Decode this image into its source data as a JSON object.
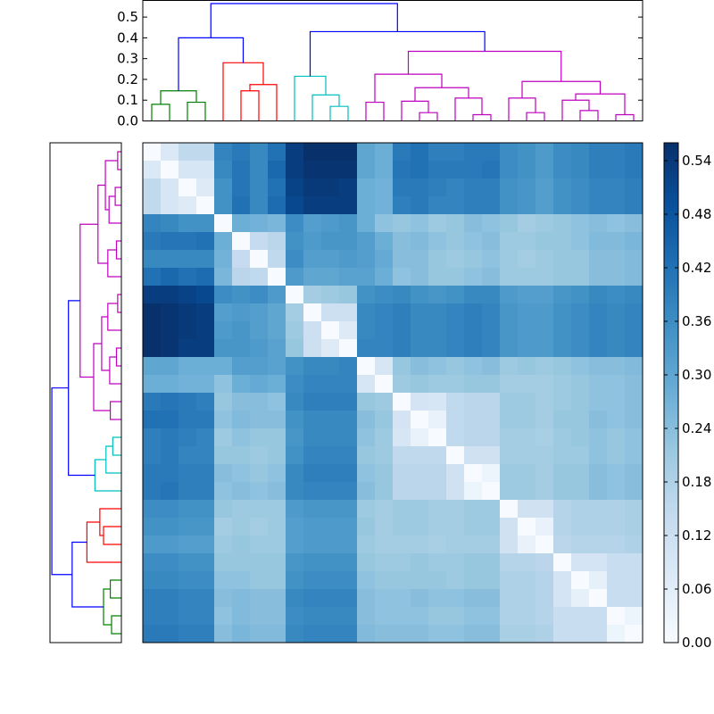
{
  "chart_data": [
    {
      "type": "dendrogram",
      "orientation": "top",
      "ylim": [
        0,
        0.58
      ],
      "yticks": [
        "0.0",
        "0.1",
        "0.2",
        "0.3",
        "0.4",
        "0.5"
      ],
      "yticks_values": [
        0,
        0.1,
        0.2,
        0.3,
        0.4,
        0.5
      ],
      "leaf_count": 28,
      "cluster_colors": {
        "blue": "#0000ff",
        "green": "#008000",
        "red": "#ff0000",
        "cyan": "#00bfbf",
        "magenta": "#bf00bf"
      },
      "links": [
        {
          "a": 0.5,
          "b": 1.5,
          "ha": 0.0,
          "hb": 0.0,
          "h": 0.08,
          "color": "green"
        },
        {
          "a": 2.5,
          "b": 3.5,
          "ha": 0.0,
          "hb": 0.0,
          "h": 0.09,
          "color": "green"
        },
        {
          "a": 1.0,
          "b": 3.0,
          "ha": 0.08,
          "hb": 0.09,
          "h": 0.145,
          "color": "green"
        },
        {
          "a": 5.5,
          "b": 6.5,
          "ha": 0.0,
          "hb": 0.0,
          "h": 0.145,
          "color": "red"
        },
        {
          "a": 6.0,
          "b": 7.5,
          "ha": 0.145,
          "hb": 0.0,
          "h": 0.175,
          "color": "red"
        },
        {
          "a": 4.5,
          "b": 6.75,
          "ha": 0.0,
          "hb": 0.175,
          "h": 0.28,
          "color": "red"
        },
        {
          "a": 10.5,
          "b": 11.5,
          "ha": 0.0,
          "hb": 0.0,
          "h": 0.07,
          "color": "cyan"
        },
        {
          "a": 9.5,
          "b": 11.0,
          "ha": 0.0,
          "hb": 0.07,
          "h": 0.125,
          "color": "cyan"
        },
        {
          "a": 8.5,
          "b": 10.25,
          "ha": 0.0,
          "hb": 0.125,
          "h": 0.215,
          "color": "cyan"
        },
        {
          "a": 12.5,
          "b": 13.5,
          "ha": 0.0,
          "hb": 0.0,
          "h": 0.09,
          "color": "magenta"
        },
        {
          "a": 15.5,
          "b": 16.5,
          "ha": 0.0,
          "hb": 0.0,
          "h": 0.04,
          "color": "magenta"
        },
        {
          "a": 14.5,
          "b": 16.0,
          "ha": 0.0,
          "hb": 0.04,
          "h": 0.095,
          "color": "magenta"
        },
        {
          "a": 18.5,
          "b": 19.5,
          "ha": 0.0,
          "hb": 0.0,
          "h": 0.03,
          "color": "magenta"
        },
        {
          "a": 17.5,
          "b": 19.0,
          "ha": 0.0,
          "hb": 0.03,
          "h": 0.11,
          "color": "magenta"
        },
        {
          "a": 15.25,
          "b": 18.25,
          "ha": 0.095,
          "hb": 0.11,
          "h": 0.16,
          "color": "magenta"
        },
        {
          "a": 13.0,
          "b": 16.75,
          "ha": 0.09,
          "hb": 0.16,
          "h": 0.225,
          "color": "magenta"
        },
        {
          "a": 21.5,
          "b": 22.5,
          "ha": 0.0,
          "hb": 0.0,
          "h": 0.04,
          "color": "magenta"
        },
        {
          "a": 20.5,
          "b": 22.0,
          "ha": 0.0,
          "hb": 0.04,
          "h": 0.11,
          "color": "magenta"
        },
        {
          "a": 24.5,
          "b": 25.5,
          "ha": 0.0,
          "hb": 0.0,
          "h": 0.05,
          "color": "magenta"
        },
        {
          "a": 23.5,
          "b": 25.0,
          "ha": 0.0,
          "hb": 0.05,
          "h": 0.1,
          "color": "magenta"
        },
        {
          "a": 26.5,
          "b": 27.5,
          "ha": 0.0,
          "hb": 0.0,
          "h": 0.03,
          "color": "magenta"
        },
        {
          "a": 24.25,
          "b": 27.0,
          "ha": 0.1,
          "hb": 0.03,
          "h": 0.13,
          "color": "magenta"
        },
        {
          "a": 21.25,
          "b": 25.625,
          "ha": 0.11,
          "hb": 0.13,
          "h": 0.19,
          "color": "magenta"
        },
        {
          "a": 14.875,
          "b": 23.4375,
          "ha": 0.225,
          "hb": 0.19,
          "h": 0.335,
          "color": "magenta"
        },
        {
          "a": 9.375,
          "b": 19.15625,
          "ha": 0.215,
          "hb": 0.335,
          "h": 0.43,
          "color": "blue"
        },
        {
          "a": 2.0,
          "b": 5.625,
          "ha": 0.145,
          "hb": 0.28,
          "h": 0.4,
          "color": "blue"
        },
        {
          "a": 3.8125,
          "b": 14.265625,
          "ha": 0.4,
          "hb": 0.43,
          "h": 0.565,
          "color": "blue"
        }
      ]
    },
    {
      "type": "dendrogram",
      "orientation": "left",
      "leaf_count": 28,
      "note": "Same linkage as the top dendrogram, leaves ordered bottom to top"
    },
    {
      "type": "heatmap",
      "size": 28,
      "colormap": "Blues",
      "vmin": 0.0,
      "vmax": 0.56,
      "colorbar_ticks": [
        "0.00",
        "0.06",
        "0.12",
        "0.18",
        "0.24",
        "0.30",
        "0.36",
        "0.42",
        "0.48",
        "0.54"
      ],
      "colorbar_tick_values": [
        0.0,
        0.06,
        0.12,
        0.18,
        0.24,
        0.3,
        0.36,
        0.42,
        0.48,
        0.54
      ],
      "values": [
        [
          0.0,
          0.08,
          0.15,
          0.15,
          0.38,
          0.4,
          0.37,
          0.42,
          0.53,
          0.56,
          0.56,
          0.56,
          0.3,
          0.28,
          0.4,
          0.42,
          0.39,
          0.39,
          0.4,
          0.4,
          0.36,
          0.35,
          0.33,
          0.36,
          0.37,
          0.39,
          0.39,
          0.4
        ],
        [
          0.08,
          0.0,
          0.09,
          0.09,
          0.37,
          0.41,
          0.37,
          0.44,
          0.53,
          0.55,
          0.55,
          0.55,
          0.3,
          0.28,
          0.41,
          0.42,
          0.4,
          0.4,
          0.4,
          0.41,
          0.36,
          0.35,
          0.33,
          0.36,
          0.37,
          0.39,
          0.39,
          0.4
        ],
        [
          0.15,
          0.09,
          0.0,
          0.07,
          0.35,
          0.41,
          0.37,
          0.42,
          0.52,
          0.54,
          0.54,
          0.53,
          0.28,
          0.27,
          0.4,
          0.4,
          0.39,
          0.38,
          0.39,
          0.39,
          0.35,
          0.34,
          0.32,
          0.35,
          0.36,
          0.38,
          0.38,
          0.39
        ],
        [
          0.15,
          0.09,
          0.07,
          0.0,
          0.35,
          0.42,
          0.37,
          0.43,
          0.51,
          0.53,
          0.53,
          0.53,
          0.28,
          0.27,
          0.39,
          0.4,
          0.38,
          0.38,
          0.39,
          0.39,
          0.35,
          0.34,
          0.32,
          0.35,
          0.36,
          0.38,
          0.38,
          0.39
        ],
        [
          0.38,
          0.37,
          0.35,
          0.35,
          0.0,
          0.28,
          0.27,
          0.26,
          0.36,
          0.32,
          0.33,
          0.34,
          0.28,
          0.23,
          0.22,
          0.23,
          0.21,
          0.22,
          0.24,
          0.23,
          0.22,
          0.2,
          0.21,
          0.22,
          0.23,
          0.24,
          0.23,
          0.24
        ],
        [
          0.4,
          0.41,
          0.41,
          0.42,
          0.28,
          0.0,
          0.14,
          0.16,
          0.35,
          0.33,
          0.34,
          0.34,
          0.32,
          0.28,
          0.24,
          0.25,
          0.23,
          0.22,
          0.23,
          0.24,
          0.21,
          0.21,
          0.22,
          0.22,
          0.23,
          0.25,
          0.25,
          0.26
        ],
        [
          0.37,
          0.37,
          0.37,
          0.37,
          0.27,
          0.14,
          0.0,
          0.15,
          0.36,
          0.32,
          0.32,
          0.33,
          0.32,
          0.29,
          0.24,
          0.24,
          0.22,
          0.21,
          0.22,
          0.23,
          0.21,
          0.2,
          0.21,
          0.22,
          0.22,
          0.24,
          0.24,
          0.25
        ],
        [
          0.42,
          0.44,
          0.42,
          0.43,
          0.26,
          0.16,
          0.15,
          0.0,
          0.33,
          0.3,
          0.3,
          0.31,
          0.31,
          0.28,
          0.23,
          0.24,
          0.22,
          0.22,
          0.23,
          0.24,
          0.21,
          0.21,
          0.21,
          0.22,
          0.22,
          0.24,
          0.24,
          0.25
        ],
        [
          0.53,
          0.53,
          0.52,
          0.51,
          0.36,
          0.35,
          0.36,
          0.33,
          0.0,
          0.2,
          0.21,
          0.22,
          0.35,
          0.36,
          0.37,
          0.35,
          0.34,
          0.35,
          0.37,
          0.37,
          0.33,
          0.32,
          0.32,
          0.34,
          0.35,
          0.37,
          0.36,
          0.37
        ],
        [
          0.56,
          0.55,
          0.54,
          0.53,
          0.32,
          0.33,
          0.32,
          0.3,
          0.2,
          0.0,
          0.12,
          0.12,
          0.37,
          0.38,
          0.39,
          0.37,
          0.37,
          0.38,
          0.39,
          0.38,
          0.34,
          0.33,
          0.33,
          0.35,
          0.36,
          0.38,
          0.37,
          0.38
        ],
        [
          0.56,
          0.55,
          0.54,
          0.53,
          0.33,
          0.34,
          0.32,
          0.3,
          0.21,
          0.12,
          0.0,
          0.07,
          0.37,
          0.38,
          0.39,
          0.37,
          0.37,
          0.38,
          0.39,
          0.38,
          0.34,
          0.33,
          0.33,
          0.35,
          0.36,
          0.38,
          0.37,
          0.38
        ],
        [
          0.56,
          0.55,
          0.53,
          0.53,
          0.34,
          0.34,
          0.33,
          0.31,
          0.22,
          0.12,
          0.07,
          0.0,
          0.38,
          0.38,
          0.39,
          0.37,
          0.37,
          0.38,
          0.39,
          0.38,
          0.34,
          0.33,
          0.33,
          0.35,
          0.36,
          0.38,
          0.37,
          0.38
        ],
        [
          0.3,
          0.3,
          0.28,
          0.28,
          0.28,
          0.32,
          0.32,
          0.31,
          0.35,
          0.37,
          0.37,
          0.38,
          0.0,
          0.09,
          0.22,
          0.24,
          0.23,
          0.22,
          0.23,
          0.24,
          0.21,
          0.22,
          0.21,
          0.22,
          0.23,
          0.24,
          0.24,
          0.25
        ],
        [
          0.28,
          0.28,
          0.27,
          0.27,
          0.23,
          0.28,
          0.29,
          0.28,
          0.36,
          0.38,
          0.38,
          0.38,
          0.09,
          0.0,
          0.21,
          0.22,
          0.21,
          0.21,
          0.22,
          0.22,
          0.2,
          0.2,
          0.2,
          0.21,
          0.22,
          0.23,
          0.23,
          0.24
        ],
        [
          0.4,
          0.41,
          0.4,
          0.39,
          0.22,
          0.24,
          0.24,
          0.23,
          0.37,
          0.39,
          0.39,
          0.39,
          0.22,
          0.21,
          0.0,
          0.1,
          0.09,
          0.15,
          0.16,
          0.16,
          0.21,
          0.21,
          0.2,
          0.21,
          0.22,
          0.23,
          0.23,
          0.24
        ],
        [
          0.42,
          0.42,
          0.4,
          0.4,
          0.23,
          0.25,
          0.24,
          0.24,
          0.35,
          0.37,
          0.37,
          0.37,
          0.24,
          0.22,
          0.1,
          0.0,
          0.04,
          0.15,
          0.16,
          0.16,
          0.21,
          0.21,
          0.2,
          0.22,
          0.22,
          0.24,
          0.23,
          0.24
        ],
        [
          0.39,
          0.4,
          0.39,
          0.38,
          0.21,
          0.23,
          0.22,
          0.22,
          0.34,
          0.37,
          0.37,
          0.37,
          0.23,
          0.21,
          0.09,
          0.04,
          0.0,
          0.15,
          0.16,
          0.16,
          0.2,
          0.2,
          0.19,
          0.21,
          0.22,
          0.23,
          0.22,
          0.23
        ],
        [
          0.39,
          0.4,
          0.38,
          0.38,
          0.22,
          0.22,
          0.21,
          0.22,
          0.35,
          0.38,
          0.38,
          0.38,
          0.22,
          0.21,
          0.15,
          0.15,
          0.15,
          0.0,
          0.11,
          0.11,
          0.2,
          0.2,
          0.2,
          0.21,
          0.21,
          0.23,
          0.22,
          0.23
        ],
        [
          0.4,
          0.4,
          0.39,
          0.39,
          0.24,
          0.23,
          0.22,
          0.23,
          0.37,
          0.39,
          0.39,
          0.39,
          0.23,
          0.22,
          0.16,
          0.16,
          0.16,
          0.11,
          0.0,
          0.03,
          0.21,
          0.21,
          0.2,
          0.22,
          0.22,
          0.24,
          0.23,
          0.24
        ],
        [
          0.4,
          0.41,
          0.39,
          0.39,
          0.23,
          0.24,
          0.23,
          0.24,
          0.37,
          0.38,
          0.38,
          0.38,
          0.24,
          0.22,
          0.16,
          0.16,
          0.16,
          0.11,
          0.03,
          0.0,
          0.21,
          0.21,
          0.2,
          0.22,
          0.22,
          0.24,
          0.23,
          0.24
        ],
        [
          0.36,
          0.36,
          0.35,
          0.35,
          0.22,
          0.21,
          0.21,
          0.21,
          0.33,
          0.34,
          0.34,
          0.34,
          0.21,
          0.2,
          0.21,
          0.21,
          0.2,
          0.2,
          0.21,
          0.21,
          0.0,
          0.11,
          0.11,
          0.17,
          0.18,
          0.18,
          0.18,
          0.19
        ],
        [
          0.35,
          0.35,
          0.34,
          0.34,
          0.2,
          0.21,
          0.2,
          0.21,
          0.32,
          0.33,
          0.33,
          0.33,
          0.22,
          0.2,
          0.21,
          0.21,
          0.2,
          0.2,
          0.21,
          0.21,
          0.11,
          0.0,
          0.04,
          0.17,
          0.18,
          0.18,
          0.18,
          0.19
        ],
        [
          0.33,
          0.33,
          0.32,
          0.32,
          0.21,
          0.22,
          0.21,
          0.21,
          0.32,
          0.33,
          0.33,
          0.33,
          0.21,
          0.2,
          0.2,
          0.2,
          0.19,
          0.2,
          0.2,
          0.2,
          0.11,
          0.04,
          0.0,
          0.16,
          0.17,
          0.17,
          0.17,
          0.18
        ],
        [
          0.36,
          0.36,
          0.35,
          0.35,
          0.22,
          0.22,
          0.22,
          0.22,
          0.34,
          0.35,
          0.35,
          0.35,
          0.22,
          0.21,
          0.21,
          0.22,
          0.21,
          0.21,
          0.22,
          0.22,
          0.17,
          0.17,
          0.16,
          0.0,
          0.1,
          0.1,
          0.13,
          0.13
        ],
        [
          0.37,
          0.37,
          0.36,
          0.36,
          0.23,
          0.23,
          0.22,
          0.22,
          0.35,
          0.36,
          0.36,
          0.36,
          0.23,
          0.22,
          0.22,
          0.22,
          0.22,
          0.21,
          0.22,
          0.22,
          0.18,
          0.18,
          0.17,
          0.1,
          0.0,
          0.05,
          0.13,
          0.13
        ],
        [
          0.39,
          0.39,
          0.38,
          0.38,
          0.24,
          0.25,
          0.24,
          0.24,
          0.37,
          0.38,
          0.38,
          0.38,
          0.24,
          0.23,
          0.23,
          0.24,
          0.23,
          0.23,
          0.24,
          0.24,
          0.18,
          0.18,
          0.17,
          0.1,
          0.05,
          0.0,
          0.13,
          0.13
        ],
        [
          0.39,
          0.39,
          0.38,
          0.38,
          0.23,
          0.25,
          0.24,
          0.24,
          0.36,
          0.37,
          0.37,
          0.37,
          0.24,
          0.23,
          0.23,
          0.23,
          0.22,
          0.22,
          0.23,
          0.23,
          0.18,
          0.18,
          0.17,
          0.13,
          0.13,
          0.13,
          0.0,
          0.03
        ],
        [
          0.4,
          0.4,
          0.39,
          0.39,
          0.24,
          0.26,
          0.25,
          0.25,
          0.37,
          0.38,
          0.38,
          0.38,
          0.25,
          0.24,
          0.24,
          0.24,
          0.23,
          0.23,
          0.24,
          0.24,
          0.19,
          0.19,
          0.18,
          0.13,
          0.13,
          0.13,
          0.03,
          0.0
        ]
      ]
    }
  ]
}
